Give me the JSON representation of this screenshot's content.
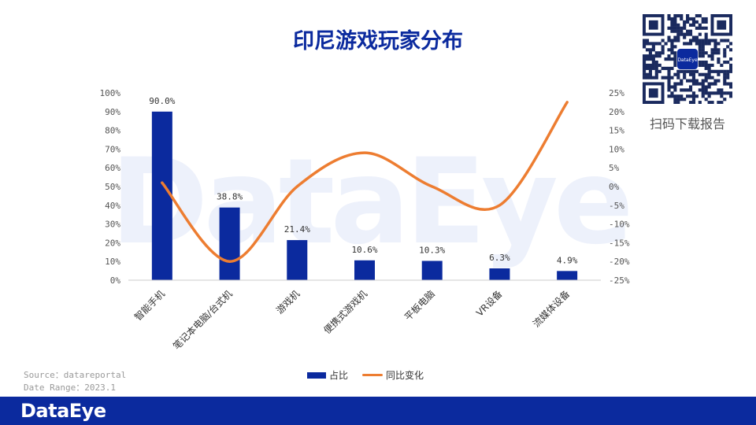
{
  "title": "印尼游戏玩家分布",
  "qr_label": "扫码下载报告",
  "qr_logo_text": "DataEye",
  "source": "Source：datareportal",
  "date_range": "Date Range：2023.1",
  "footer_logo": "DataEye",
  "watermark": "DataEye",
  "colors": {
    "bar": "#0b2a9e",
    "line": "#ed7d31",
    "title": "#0b2a9e",
    "footer": "#0b2a9e"
  },
  "chart_data": {
    "type": "bar",
    "categories": [
      "智能手机",
      "笔记本电脑/台式机",
      "游戏机",
      "便携式游戏机",
      "平板电脑",
      "VR设备",
      "流媒体设备"
    ],
    "series": [
      {
        "name": "占比",
        "type": "bar",
        "axis": "left",
        "values": [
          90.0,
          38.8,
          21.4,
          10.6,
          10.3,
          6.3,
          4.9
        ],
        "labels": [
          "90.0%",
          "38.8%",
          "21.4%",
          "10.6%",
          "10.3%",
          "6.3%",
          "4.9%"
        ]
      },
      {
        "name": "同比变化",
        "type": "line",
        "axis": "right",
        "smooth": true,
        "values": [
          1,
          -20,
          0,
          9,
          0,
          -5,
          22.5
        ]
      }
    ],
    "y_left": {
      "min": 0,
      "max": 100,
      "step": 10,
      "ticks": [
        "0%",
        "10%",
        "20%",
        "30%",
        "40%",
        "50%",
        "60%",
        "70%",
        "80%",
        "90%",
        "100%"
      ]
    },
    "y_right": {
      "min": -25,
      "max": 25,
      "step": 5,
      "ticks": [
        "-25%",
        "-20%",
        "-15%",
        "-10%",
        "-5%",
        "0%",
        "5%",
        "10%",
        "15%",
        "20%",
        "25%"
      ]
    },
    "legend": "bottom",
    "grid": false
  }
}
